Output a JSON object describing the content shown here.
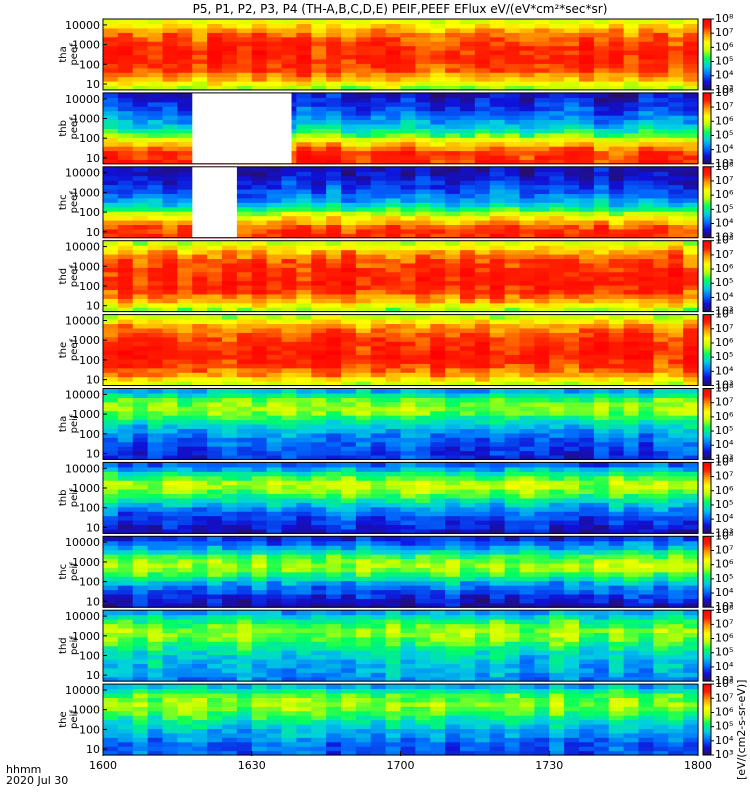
{
  "chart_data": {
    "type": "heatmap",
    "title": "P5, P1, P2, P3, P4 (TH-A,B,C,D,E) PEIF,PEEF EFlux eV/(eV*cm²*sec*sr)",
    "x_axis": {
      "range": [
        "1600",
        "1800"
      ],
      "ticks": [
        "1600",
        "1630",
        "1700",
        "1730",
        "1800"
      ],
      "time_label": "hhmm",
      "date_label": "2020 Jul 30"
    },
    "y_axis": {
      "scale": "log",
      "ticks": [
        "10",
        "100",
        "1000",
        "10000"
      ]
    },
    "colorbar": {
      "scale": "log",
      "ticks": [
        "10³",
        "10⁴",
        "10⁵",
        "10⁶",
        "10⁷",
        "10⁸"
      ],
      "label": "[eV/(cm2-s-sr-eV)]",
      "stops": [
        "#2a0e5e",
        "#1010d8",
        "#0070ff",
        "#00d0e0",
        "#00ff60",
        "#c0ff00",
        "#ffff00",
        "#ffa000",
        "#ff2000",
        "#ff0000"
      ]
    },
    "panels": [
      {
        "probe": "tha",
        "product": "peef",
        "label": "tha\npeef",
        "ticks": [
          "10",
          "100",
          "1000",
          "10000"
        ],
        "level_profile": [
          0.55,
          0.75,
          0.86,
          0.9,
          0.9,
          0.86,
          0.78,
          0.62
        ],
        "mean_level": 0.85
      },
      {
        "probe": "thb",
        "product": "peef",
        "label": "thb\npeef",
        "ticks": [
          "10",
          "100",
          "1000",
          "10000"
        ],
        "level_profile": [
          0.9,
          0.88,
          0.7,
          0.45,
          0.3,
          0.22,
          0.15,
          0.1
        ],
        "mean_level": 0.35,
        "gap": [
          "1618",
          "1638"
        ]
      },
      {
        "probe": "thc",
        "product": "peef",
        "label": "thc\npeef",
        "ticks": [
          "10",
          "100",
          "1000",
          "10000"
        ],
        "level_profile": [
          0.9,
          0.85,
          0.65,
          0.4,
          0.25,
          0.18,
          0.12,
          0.08
        ],
        "mean_level": 0.32,
        "gap": [
          "1618",
          "1627"
        ]
      },
      {
        "probe": "thd",
        "product": "peef",
        "label": "thd\npeef",
        "ticks": [
          "10",
          "100",
          "1000",
          "10000"
        ],
        "level_profile": [
          0.55,
          0.78,
          0.88,
          0.92,
          0.9,
          0.86,
          0.78,
          0.6
        ],
        "mean_level": 0.84
      },
      {
        "probe": "the",
        "product": "peef",
        "label": "the\npeef",
        "ticks": [
          "10",
          "100",
          "1000",
          "10000"
        ],
        "level_profile": [
          0.6,
          0.78,
          0.88,
          0.92,
          0.9,
          0.86,
          0.78,
          0.58
        ],
        "mean_level": 0.85
      },
      {
        "probe": "tha",
        "product": "peif",
        "label": "tha\npeif",
        "ticks": [
          "10",
          "100",
          "1000",
          "10000"
        ],
        "level_profile": [
          0.15,
          0.18,
          0.22,
          0.3,
          0.42,
          0.55,
          0.5,
          0.3
        ],
        "mean_level": 0.35
      },
      {
        "probe": "thb",
        "product": "peif",
        "label": "thb\npeif",
        "ticks": [
          "10",
          "100",
          "1000",
          "10000"
        ],
        "level_profile": [
          0.1,
          0.16,
          0.22,
          0.35,
          0.5,
          0.6,
          0.42,
          0.22
        ],
        "mean_level": 0.3
      },
      {
        "probe": "thc",
        "product": "peif",
        "label": "thc\npeif",
        "ticks": [
          "10",
          "100",
          "1000",
          "10000"
        ],
        "level_profile": [
          0.08,
          0.15,
          0.25,
          0.42,
          0.58,
          0.5,
          0.3,
          0.15
        ],
        "mean_level": 0.28
      },
      {
        "probe": "thd",
        "product": "peif",
        "label": "thd\npeif",
        "ticks": [
          "10",
          "100",
          "1000",
          "10000"
        ],
        "level_profile": [
          0.25,
          0.3,
          0.32,
          0.38,
          0.48,
          0.55,
          0.45,
          0.3
        ],
        "mean_level": 0.4
      },
      {
        "probe": "the",
        "product": "peif",
        "label": "the\npeif",
        "ticks": [
          "10",
          "100",
          "1000",
          "10000"
        ],
        "level_profile": [
          0.2,
          0.22,
          0.28,
          0.35,
          0.45,
          0.55,
          0.5,
          0.32
        ],
        "mean_level": 0.38
      }
    ]
  }
}
